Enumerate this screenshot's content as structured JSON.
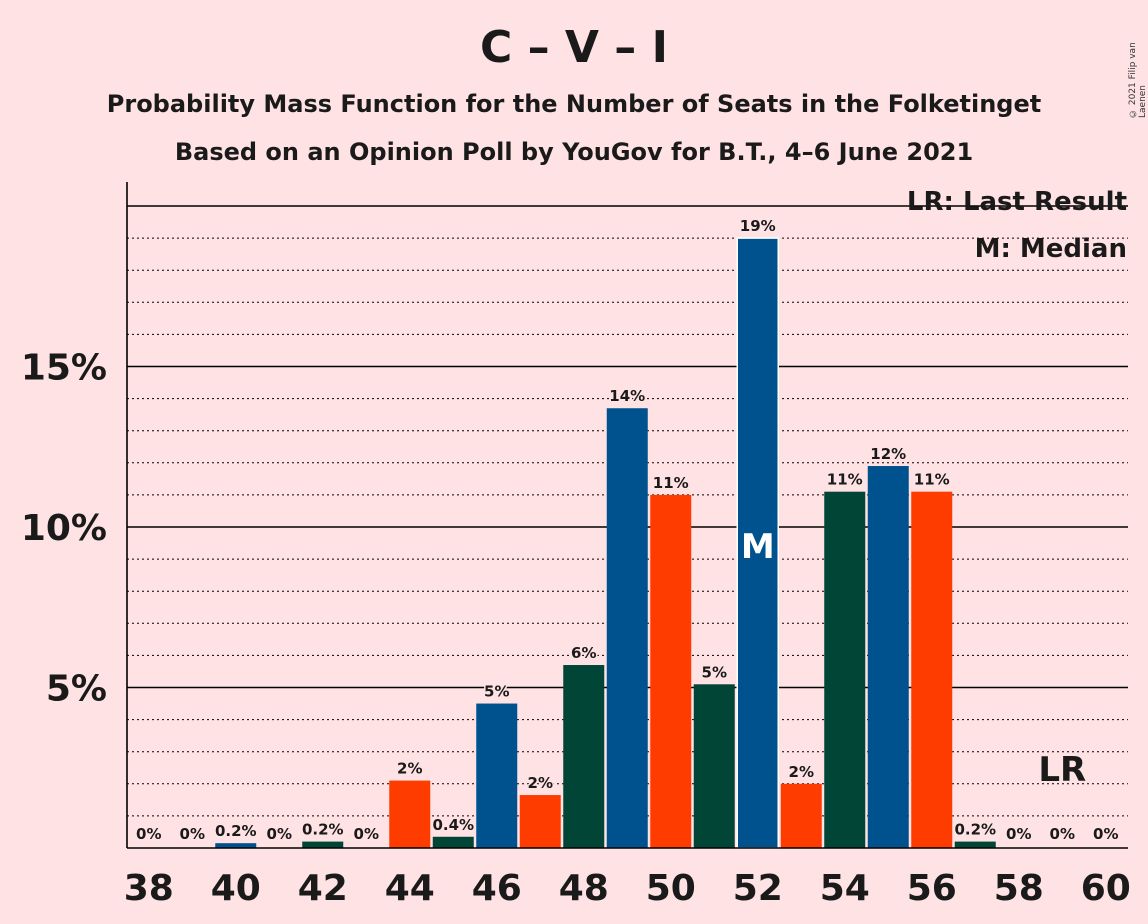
{
  "title": "C – V – I",
  "subtitle_1": "Probability Mass Function for the Number of Seats in the Folketinget",
  "subtitle_2": "Based on an Opinion Poll by YouGov for B.T., 4–6 June 2021",
  "copyright": "© 2021 Filip van Laenen",
  "legend": {
    "last_result": "LR: Last Result",
    "median": "M: Median"
  },
  "markers": {
    "median_label": "M",
    "median_seat": 52,
    "last_result_label": "LR",
    "last_result_seat": 59
  },
  "colors": {
    "background": "#FFE2E4",
    "blue": "#00528F",
    "red": "#FF3C00",
    "green": "#004536"
  },
  "chart_data": {
    "type": "bar",
    "title": "C – V – I",
    "xlabel": "",
    "ylabel": "",
    "ylim": [
      0,
      20.8
    ],
    "x_ticks": [
      "38",
      "40",
      "42",
      "44",
      "46",
      "48",
      "50",
      "52",
      "54",
      "56",
      "58",
      "60"
    ],
    "y_ticks": [
      "5%",
      "10%",
      "15%"
    ],
    "grid": "dotted every 1%, solid at 5%",
    "x": [
      38,
      39,
      40,
      41,
      42,
      43,
      44,
      45,
      46,
      47,
      48,
      49,
      50,
      51,
      52,
      53,
      54,
      55,
      56,
      57,
      58,
      59,
      60
    ],
    "values": [
      0,
      0,
      0.15,
      0,
      0.2,
      0,
      2.1,
      0.35,
      4.5,
      1.65,
      5.7,
      13.7,
      11.0,
      5.1,
      19.0,
      2.0,
      11.1,
      11.9,
      11.1,
      0.2,
      0,
      0,
      0
    ],
    "labels": [
      "0%",
      "0%",
      "0.2%",
      "0%",
      "0.2%",
      "0%",
      "2%",
      "0.4%",
      "5%",
      "2%",
      "6%",
      "14%",
      "11%",
      "5%",
      "19%",
      "2%",
      "11%",
      "12%",
      "11%",
      "0.2%",
      "0%",
      "0%",
      "0%"
    ],
    "bar_colors": [
      "blue",
      "blue",
      "blue",
      "green",
      "green",
      "red",
      "red",
      "green",
      "blue",
      "red",
      "green",
      "blue",
      "red",
      "green",
      "blue",
      "red",
      "green",
      "blue",
      "red",
      "green",
      "green",
      "green",
      "green"
    ]
  }
}
